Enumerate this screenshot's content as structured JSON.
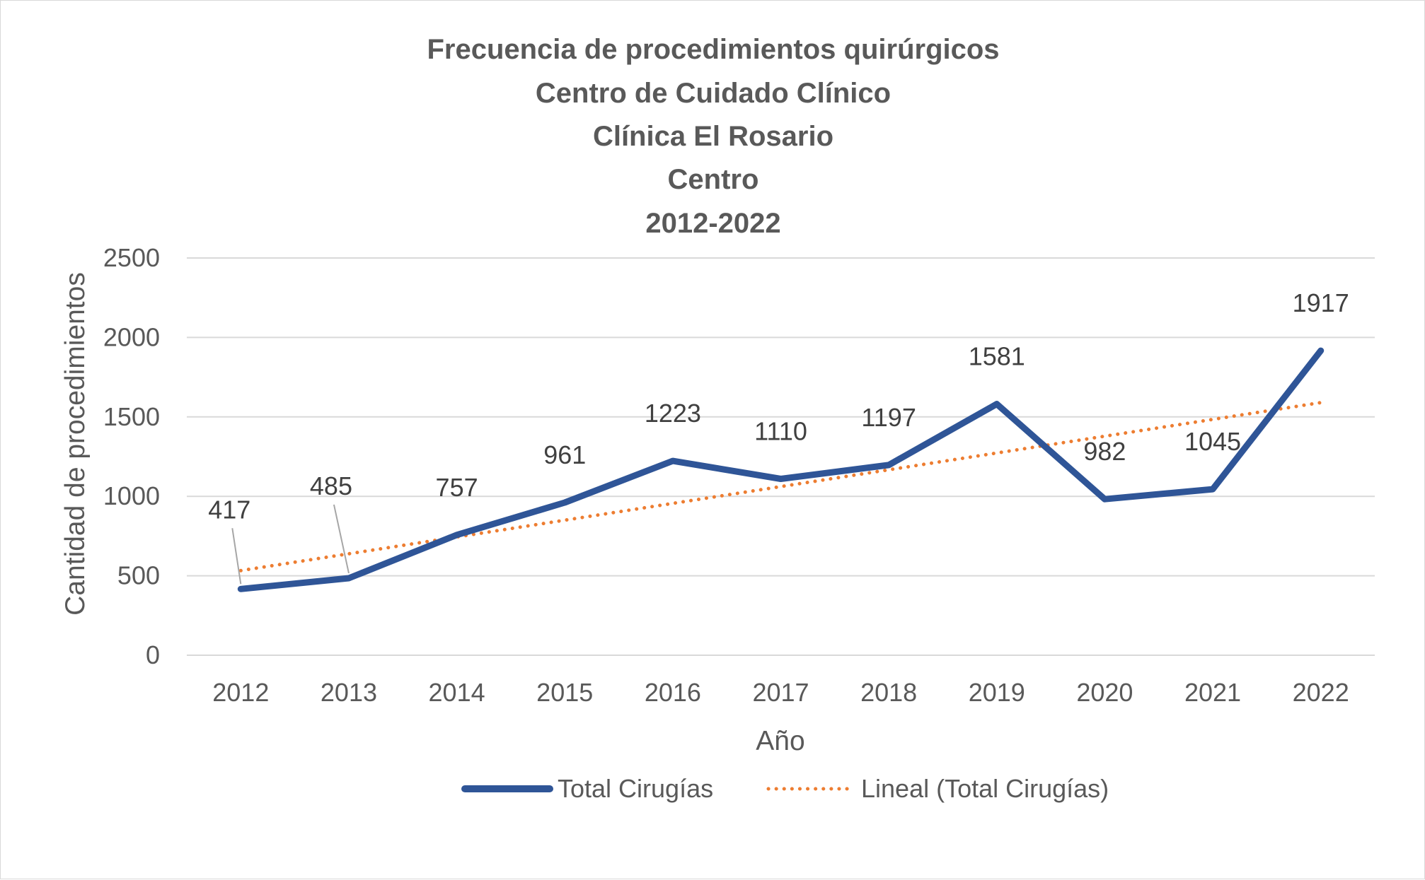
{
  "chart_data": {
    "type": "line",
    "title_lines": [
      "Frecuencia de  procedimientos quirúrgicos",
      "Centro de Cuidado Clínico",
      "Clínica El Rosario",
      "Centro",
      "2012-2022"
    ],
    "categories": [
      "2012",
      "2013",
      "2014",
      "2015",
      "2016",
      "2017",
      "2018",
      "2019",
      "2020",
      "2021",
      "2022"
    ],
    "series": [
      {
        "name": "Total Cirugías",
        "values": [
          417,
          485,
          757,
          961,
          1223,
          1110,
          1197,
          1581,
          982,
          1045,
          1917
        ],
        "color": "#2f5597",
        "data_labels": [
          "417",
          "485",
          "757",
          "961",
          "1223",
          "1110",
          "1197",
          "1581",
          "982",
          "1045",
          "1917"
        ]
      },
      {
        "name": "Lineal (Total Cirugías)",
        "trendline": "linear",
        "color": "#ed7d31",
        "style": "dotted"
      }
    ],
    "xlabel": "Año",
    "ylabel": "Cantidad de procedimientos",
    "ylim": [
      0,
      2500
    ],
    "yticks": [
      "0",
      "500",
      "1000",
      "1500",
      "2000",
      "2500"
    ],
    "grid": true,
    "legend_position": "bottom"
  }
}
